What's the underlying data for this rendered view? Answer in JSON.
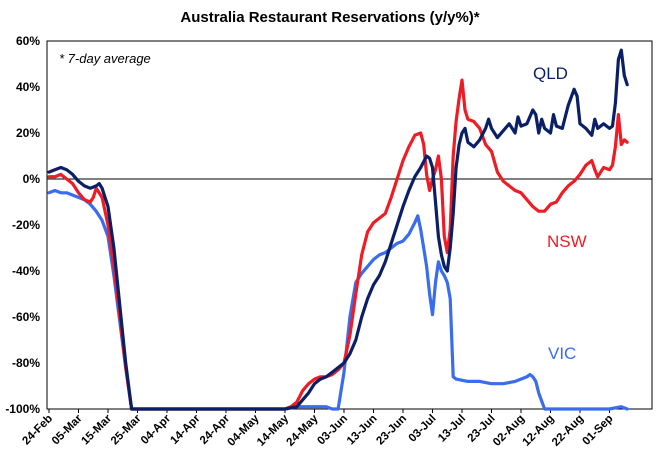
{
  "chart_data": {
    "type": "line",
    "title": "Australia Restaurant Reservations (y/y%)*",
    "annotation": "* 7-day average",
    "ylim": [
      -100,
      60
    ],
    "y_ticks": [
      "60%",
      "40%",
      "20%",
      "0%",
      "-20%",
      "-40%",
      "-60%",
      "-80%",
      "-100%"
    ],
    "y_tick_values": [
      60,
      40,
      20,
      0,
      -20,
      -40,
      -60,
      -80,
      -100
    ],
    "x_ticks": [
      "24-Feb",
      "05-Mar",
      "15-Mar",
      "25-Mar",
      "04-Apr",
      "14-Apr",
      "24-Apr",
      "04-May",
      "14-May",
      "24-May",
      "03-Jun",
      "13-Jun",
      "23-Jun",
      "03-Jul",
      "13-Jul",
      "23-Jul",
      "02-Aug",
      "12-Aug",
      "22-Aug",
      "01-Sep"
    ],
    "x_days_between_ticks": 10,
    "x_range_days": [
      0,
      196
    ],
    "grid": false,
    "zero_line": true,
    "series": [
      {
        "name": "QLD",
        "color": "#0a1f66",
        "points": [
          [
            0,
            3
          ],
          [
            2,
            4
          ],
          [
            4,
            5
          ],
          [
            6,
            4
          ],
          [
            8,
            2
          ],
          [
            10,
            -1
          ],
          [
            12,
            -3
          ],
          [
            14,
            -4
          ],
          [
            16,
            -3
          ],
          [
            17,
            -2
          ],
          [
            18,
            -4
          ],
          [
            20,
            -12
          ],
          [
            22,
            -30
          ],
          [
            24,
            -55
          ],
          [
            26,
            -80
          ],
          [
            28,
            -100
          ],
          [
            35,
            -100
          ],
          [
            60,
            -100
          ],
          [
            80,
            -100
          ],
          [
            84,
            -99
          ],
          [
            86,
            -96
          ],
          [
            88,
            -93
          ],
          [
            90,
            -89
          ],
          [
            92,
            -87
          ],
          [
            94,
            -86
          ],
          [
            96,
            -84
          ],
          [
            98,
            -82
          ],
          [
            100,
            -80
          ],
          [
            102,
            -76
          ],
          [
            104,
            -70
          ],
          [
            106,
            -60
          ],
          [
            108,
            -52
          ],
          [
            110,
            -46
          ],
          [
            112,
            -42
          ],
          [
            114,
            -36
          ],
          [
            116,
            -28
          ],
          [
            118,
            -20
          ],
          [
            120,
            -12
          ],
          [
            122,
            -5
          ],
          [
            124,
            1
          ],
          [
            126,
            5
          ],
          [
            128,
            10
          ],
          [
            129,
            9
          ],
          [
            130,
            5
          ],
          [
            131,
            -10
          ],
          [
            132,
            -25
          ],
          [
            133,
            -33
          ],
          [
            134,
            -38
          ],
          [
            135,
            -40
          ],
          [
            136,
            -30
          ],
          [
            137,
            -15
          ],
          [
            138,
            5
          ],
          [
            139,
            15
          ],
          [
            140,
            20
          ],
          [
            141,
            22
          ],
          [
            142,
            16
          ],
          [
            144,
            14
          ],
          [
            146,
            17
          ],
          [
            148,
            22
          ],
          [
            149,
            26
          ],
          [
            150,
            22
          ],
          [
            152,
            18
          ],
          [
            154,
            21
          ],
          [
            156,
            24
          ],
          [
            158,
            20
          ],
          [
            159,
            27
          ],
          [
            160,
            23
          ],
          [
            162,
            24
          ],
          [
            164,
            30
          ],
          [
            165,
            28
          ],
          [
            166,
            20
          ],
          [
            167,
            26
          ],
          [
            168,
            22
          ],
          [
            170,
            20
          ],
          [
            171,
            28
          ],
          [
            172,
            23
          ],
          [
            174,
            22
          ],
          [
            176,
            32
          ],
          [
            178,
            39
          ],
          [
            179,
            36
          ],
          [
            180,
            24
          ],
          [
            182,
            22
          ],
          [
            184,
            19
          ],
          [
            185,
            26
          ],
          [
            186,
            22
          ],
          [
            188,
            24
          ],
          [
            190,
            22
          ],
          [
            191,
            23
          ],
          [
            192,
            33
          ],
          [
            193,
            52
          ],
          [
            194,
            56
          ],
          [
            195,
            45
          ],
          [
            196,
            41
          ]
        ]
      },
      {
        "name": "NSW",
        "color": "#ee1c25",
        "points": [
          [
            0,
            1
          ],
          [
            2,
            1
          ],
          [
            4,
            2
          ],
          [
            6,
            0
          ],
          [
            8,
            -2
          ],
          [
            10,
            -6
          ],
          [
            12,
            -9
          ],
          [
            14,
            -10
          ],
          [
            15,
            -8
          ],
          [
            16,
            -4
          ],
          [
            18,
            -8
          ],
          [
            20,
            -20
          ],
          [
            22,
            -38
          ],
          [
            24,
            -60
          ],
          [
            26,
            -82
          ],
          [
            28,
            -100
          ],
          [
            35,
            -100
          ],
          [
            60,
            -100
          ],
          [
            80,
            -100
          ],
          [
            82,
            -99
          ],
          [
            84,
            -97
          ],
          [
            86,
            -92
          ],
          [
            88,
            -89
          ],
          [
            90,
            -87
          ],
          [
            92,
            -86
          ],
          [
            94,
            -86
          ],
          [
            96,
            -85
          ],
          [
            98,
            -83
          ],
          [
            100,
            -80
          ],
          [
            102,
            -68
          ],
          [
            104,
            -50
          ],
          [
            106,
            -33
          ],
          [
            108,
            -23
          ],
          [
            110,
            -19
          ],
          [
            112,
            -17
          ],
          [
            114,
            -15
          ],
          [
            116,
            -8
          ],
          [
            118,
            0
          ],
          [
            120,
            8
          ],
          [
            122,
            14
          ],
          [
            124,
            19
          ],
          [
            126,
            20
          ],
          [
            127,
            15
          ],
          [
            128,
            2
          ],
          [
            129,
            -5
          ],
          [
            130,
            0
          ],
          [
            131,
            4
          ],
          [
            132,
            10
          ],
          [
            133,
            0
          ],
          [
            134,
            -25
          ],
          [
            135,
            -32
          ],
          [
            136,
            -22
          ],
          [
            137,
            10
          ],
          [
            138,
            25
          ],
          [
            139,
            35
          ],
          [
            140,
            43
          ],
          [
            141,
            30
          ],
          [
            142,
            26
          ],
          [
            144,
            25
          ],
          [
            146,
            22
          ],
          [
            148,
            15
          ],
          [
            150,
            12
          ],
          [
            152,
            3
          ],
          [
            154,
            -1
          ],
          [
            156,
            -3
          ],
          [
            158,
            -5
          ],
          [
            160,
            -6
          ],
          [
            162,
            -9
          ],
          [
            164,
            -12
          ],
          [
            166,
            -14
          ],
          [
            168,
            -14
          ],
          [
            170,
            -11
          ],
          [
            172,
            -10
          ],
          [
            174,
            -6
          ],
          [
            176,
            -3
          ],
          [
            178,
            -1
          ],
          [
            180,
            2
          ],
          [
            182,
            6
          ],
          [
            184,
            8
          ],
          [
            185,
            4
          ],
          [
            186,
            1
          ],
          [
            188,
            5
          ],
          [
            190,
            4
          ],
          [
            191,
            6
          ],
          [
            192,
            14
          ],
          [
            193,
            28
          ],
          [
            194,
            15
          ],
          [
            195,
            17
          ],
          [
            196,
            16
          ]
        ]
      },
      {
        "name": "VIC",
        "color": "#3a6cf0",
        "points": [
          [
            0,
            -6
          ],
          [
            2,
            -5
          ],
          [
            4,
            -6
          ],
          [
            6,
            -6
          ],
          [
            8,
            -7
          ],
          [
            10,
            -8
          ],
          [
            12,
            -9
          ],
          [
            14,
            -11
          ],
          [
            16,
            -14
          ],
          [
            18,
            -18
          ],
          [
            20,
            -25
          ],
          [
            22,
            -42
          ],
          [
            24,
            -62
          ],
          [
            26,
            -82
          ],
          [
            28,
            -100
          ],
          [
            35,
            -100
          ],
          [
            60,
            -100
          ],
          [
            80,
            -100
          ],
          [
            84,
            -99
          ],
          [
            86,
            -99
          ],
          [
            88,
            -99
          ],
          [
            90,
            -99
          ],
          [
            92,
            -99
          ],
          [
            94,
            -99
          ],
          [
            96,
            -100
          ],
          [
            98,
            -100
          ],
          [
            100,
            -84
          ],
          [
            102,
            -60
          ],
          [
            104,
            -45
          ],
          [
            106,
            -41
          ],
          [
            108,
            -38
          ],
          [
            110,
            -35
          ],
          [
            112,
            -33
          ],
          [
            114,
            -32
          ],
          [
            116,
            -30
          ],
          [
            118,
            -28
          ],
          [
            120,
            -27
          ],
          [
            122,
            -24
          ],
          [
            124,
            -19
          ],
          [
            125,
            -16
          ],
          [
            126,
            -22
          ],
          [
            127,
            -30
          ],
          [
            128,
            -38
          ],
          [
            129,
            -50
          ],
          [
            130,
            -59
          ],
          [
            131,
            -45
          ],
          [
            132,
            -36
          ],
          [
            133,
            -40
          ],
          [
            134,
            -42
          ],
          [
            135,
            -45
          ],
          [
            136,
            -52
          ],
          [
            137,
            -86
          ],
          [
            138,
            -87
          ],
          [
            142,
            -88
          ],
          [
            146,
            -88
          ],
          [
            150,
            -89
          ],
          [
            154,
            -89
          ],
          [
            158,
            -88
          ],
          [
            160,
            -87
          ],
          [
            162,
            -86
          ],
          [
            163,
            -85
          ],
          [
            164,
            -86
          ],
          [
            165,
            -88
          ],
          [
            166,
            -93
          ],
          [
            168,
            -100
          ],
          [
            170,
            -100
          ],
          [
            174,
            -100
          ],
          [
            180,
            -100
          ],
          [
            186,
            -100
          ],
          [
            190,
            -100
          ],
          [
            194,
            -99
          ],
          [
            196,
            -100
          ]
        ]
      }
    ]
  }
}
